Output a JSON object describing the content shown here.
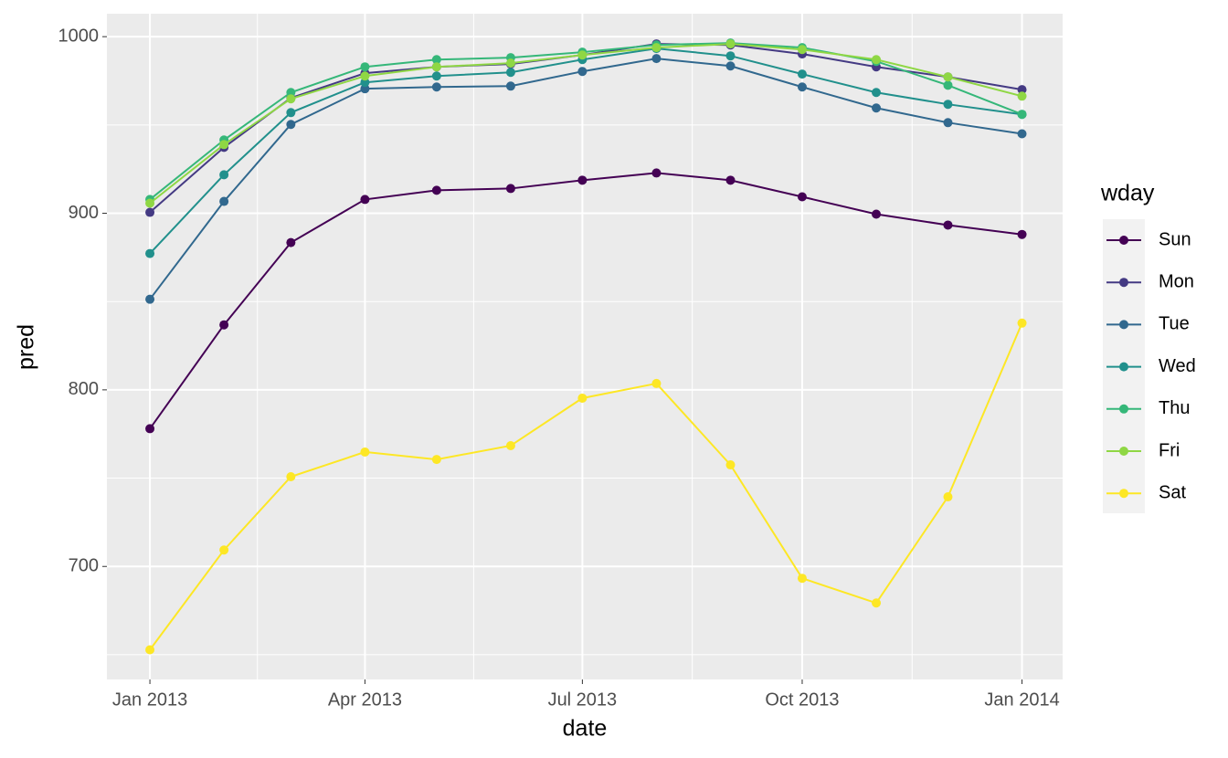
{
  "chart_data": {
    "type": "line",
    "x_label": "date",
    "y_label": "pred",
    "legend_title": "wday",
    "grid": true,
    "x": [
      "2013-01",
      "2013-02",
      "2013-03",
      "2013-04",
      "2013-05",
      "2013-06",
      "2013-07",
      "2013-08",
      "2013-09",
      "2013-10",
      "2013-11",
      "2013-12",
      "2014-01"
    ],
    "xlim": [
      "2012-12-14",
      "2014-01-18"
    ],
    "xticks": [
      {
        "value": "2013-01",
        "label": "Jan 2013"
      },
      {
        "value": "2013-04",
        "label": "Apr 2013"
      },
      {
        "value": "2013-07",
        "label": "Jul 2013"
      },
      {
        "value": "2013-10",
        "label": "Oct 2013"
      },
      {
        "value": "2014-01",
        "label": "Jan 2014"
      }
    ],
    "ylim": [
      636,
      1013
    ],
    "yticks": [
      700,
      800,
      900,
      1000
    ],
    "series": [
      {
        "name": "Sun",
        "color": "#440154",
        "values": [
          778,
          836.8,
          883.4,
          907.8,
          913,
          914,
          918.7,
          922.8,
          918.7,
          909.3,
          899.5,
          893.3,
          888
        ]
      },
      {
        "name": "Mon",
        "color": "#443A83",
        "values": [
          900.5,
          937.3,
          965.3,
          979.3,
          982.9,
          984.5,
          989.6,
          995.9,
          995.3,
          990.2,
          982.9,
          977.2,
          970
        ]
      },
      {
        "name": "Tue",
        "color": "#31688E",
        "values": [
          851.3,
          906.7,
          950.3,
          970.5,
          971.5,
          972,
          980.3,
          987.6,
          983.4,
          971.5,
          959.6,
          951.3,
          945
        ]
      },
      {
        "name": "Wed",
        "color": "#21908C",
        "values": [
          877.2,
          921.8,
          957,
          974.1,
          977.7,
          979.8,
          987,
          993.3,
          989.1,
          978.8,
          968.4,
          961.7,
          956
        ]
      },
      {
        "name": "Thu",
        "color": "#35B779",
        "values": [
          907.8,
          941.5,
          968.4,
          982.9,
          987,
          988.1,
          991.2,
          995.3,
          996.4,
          993.8,
          986,
          972.5,
          956
        ]
      },
      {
        "name": "Fri",
        "color": "#8FD744",
        "values": [
          905.7,
          938.9,
          964.8,
          977.7,
          982.9,
          985,
          989.6,
          993.8,
          995.9,
          992.7,
          987,
          977.2,
          966.3
        ]
      },
      {
        "name": "Sat",
        "color": "#FDE725",
        "values": [
          652.8,
          709.3,
          750.8,
          764.8,
          760.6,
          768.4,
          795.3,
          803.6,
          757.5,
          693.3,
          679.3,
          739.4,
          837.8
        ]
      }
    ]
  }
}
